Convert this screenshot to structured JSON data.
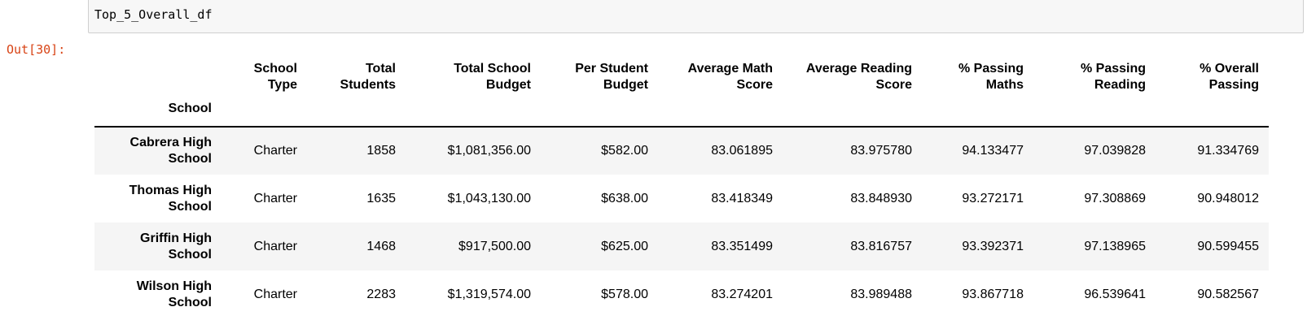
{
  "input": {
    "code": "Top_5_Overall_df"
  },
  "output": {
    "prompt": "Out[30]:"
  },
  "table": {
    "index_name": "School",
    "columns": [
      "School Type",
      "Total Students",
      "Total School Budget",
      "Per Student Budget",
      "Average Math Score",
      "Average Reading Score",
      "% Passing Maths",
      "% Passing Reading",
      "% Overall Passing"
    ],
    "rows": [
      {
        "school": "Cabrera High School",
        "cells": [
          "Charter",
          "1858",
          "$1,081,356.00",
          "$582.00",
          "83.061895",
          "83.975780",
          "94.133477",
          "97.039828",
          "91.334769"
        ]
      },
      {
        "school": "Thomas High School",
        "cells": [
          "Charter",
          "1635",
          "$1,043,130.00",
          "$638.00",
          "83.418349",
          "83.848930",
          "93.272171",
          "97.308869",
          "90.948012"
        ]
      },
      {
        "school": "Griffin High School",
        "cells": [
          "Charter",
          "1468",
          "$917,500.00",
          "$625.00",
          "83.351499",
          "83.816757",
          "93.392371",
          "97.138965",
          "90.599455"
        ]
      },
      {
        "school": "Wilson High School",
        "cells": [
          "Charter",
          "2283",
          "$1,319,574.00",
          "$578.00",
          "83.274201",
          "83.989488",
          "93.867718",
          "96.539641",
          "90.582567"
        ]
      }
    ]
  }
}
